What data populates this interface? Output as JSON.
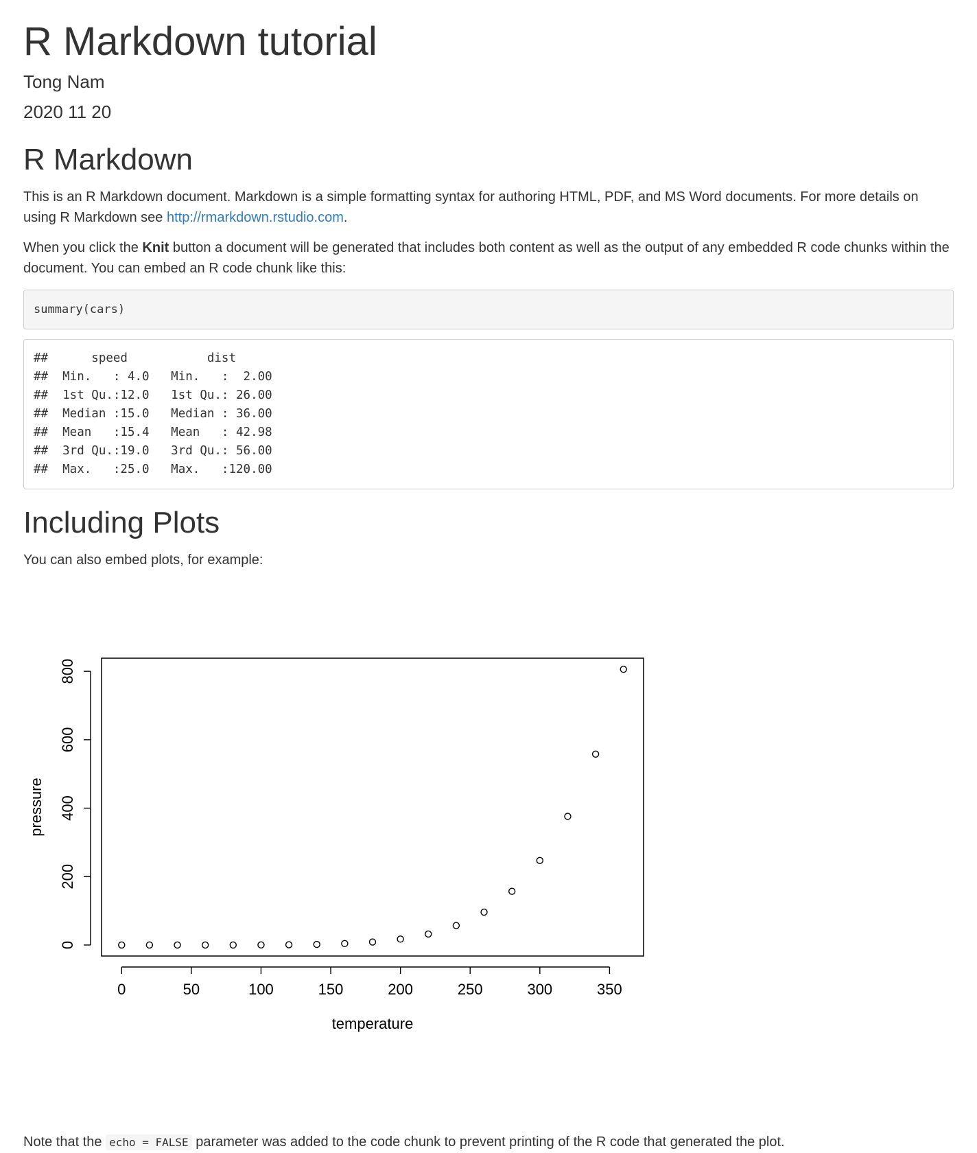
{
  "header": {
    "title": "R Markdown tutorial",
    "author": "Tong Nam",
    "date": "2020 11 20"
  },
  "section1": {
    "heading": "R Markdown",
    "para1_text": "This is an R Markdown document. Markdown is a simple formatting syntax for authoring HTML, PDF, and MS Word documents. For more details on using R Markdown see ",
    "para1_link": "http://rmarkdown.rstudio.com",
    "para1_end": ".",
    "para2_before": "When you click the ",
    "para2_bold": "Knit",
    "para2_after": " button a document will be generated that includes both content as well as the output of any embedded R code chunks within the document. You can embed an R code chunk like this:",
    "code": "summary(cars)",
    "output_lines": [
      "##      speed           dist       ",
      "##  Min.   : 4.0   Min.   :  2.00  ",
      "##  1st Qu.:12.0   1st Qu.: 26.00  ",
      "##  Median :15.0   Median : 36.00  ",
      "##  Mean   :15.4   Mean   : 42.98  ",
      "##  3rd Qu.:19.0   3rd Qu.: 56.00  ",
      "##  Max.   :25.0   Max.   :120.00  "
    ]
  },
  "section2": {
    "heading": "Including Plots",
    "para": "You can also embed plots, for example:",
    "note_before": "Note that the ",
    "note_code": "echo = FALSE",
    "note_after": " parameter was added to the code chunk to prevent printing of the R code that generated the plot."
  },
  "chart_data": {
    "type": "scatter",
    "title": "",
    "xlabel": "temperature",
    "ylabel": "pressure",
    "x": [
      0,
      20,
      40,
      60,
      80,
      100,
      120,
      140,
      160,
      180,
      200,
      220,
      240,
      260,
      280,
      300,
      320,
      340,
      360
    ],
    "y": [
      0.0002,
      0.0012,
      0.006,
      0.03,
      0.09,
      0.27,
      0.75,
      1.85,
      4.2,
      8.8,
      17.3,
      32.1,
      57,
      96,
      157,
      247,
      376,
      558,
      806
    ],
    "xlim": [
      -14.4,
      374.4
    ],
    "ylim": [
      -32.2,
      838.4
    ],
    "xticks": [
      0,
      50,
      100,
      150,
      200,
      250,
      300,
      350
    ],
    "yticks": [
      0,
      200,
      400,
      600,
      800
    ],
    "grid": false,
    "marker": "open-circle"
  }
}
